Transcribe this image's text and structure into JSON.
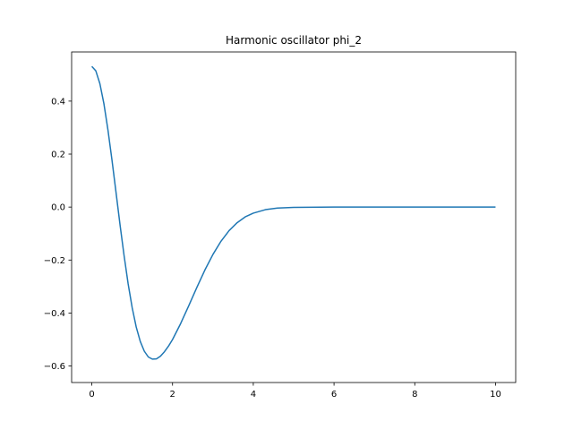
{
  "chart_data": {
    "type": "line",
    "title": "Harmonic oscillator phi_2",
    "xlabel": "",
    "ylabel": "",
    "xlim": [
      -0.5,
      10.5
    ],
    "ylim": [
      -0.6624,
      0.5856
    ],
    "grid": false,
    "legend": "none",
    "x_ticks": [
      {
        "value": 0,
        "label": "0"
      },
      {
        "value": 2,
        "label": "2"
      },
      {
        "value": 4,
        "label": "4"
      },
      {
        "value": 6,
        "label": "6"
      },
      {
        "value": 8,
        "label": "8"
      },
      {
        "value": 10,
        "label": "10"
      }
    ],
    "y_ticks": [
      {
        "value": -0.6,
        "label": "−0.6"
      },
      {
        "value": -0.4,
        "label": "−0.4"
      },
      {
        "value": -0.2,
        "label": "−0.2"
      },
      {
        "value": 0.0,
        "label": "0.0"
      },
      {
        "value": 0.2,
        "label": "0.2"
      },
      {
        "value": 0.4,
        "label": "0.4"
      }
    ],
    "series": [
      {
        "color": "#1f77b4",
        "x": [
          0,
          0.1,
          0.2,
          0.3,
          0.4,
          0.5,
          0.6,
          0.7,
          0.8,
          0.9,
          1.0,
          1.1,
          1.2,
          1.3,
          1.4,
          1.5,
          1.6,
          1.7,
          1.8,
          1.9,
          2.0,
          2.2,
          2.4,
          2.6,
          2.8,
          3.0,
          3.2,
          3.4,
          3.6,
          3.8,
          4.0,
          4.3,
          4.6,
          5.0,
          6.0,
          7.0,
          8.0,
          9.0,
          10.0
        ],
        "y": [
          0.531,
          0.514,
          0.466,
          0.39,
          0.291,
          0.177,
          0.055,
          -0.068,
          -0.184,
          -0.29,
          -0.38,
          -0.453,
          -0.507,
          -0.544,
          -0.566,
          -0.574,
          -0.573,
          -0.563,
          -0.546,
          -0.525,
          -0.5,
          -0.44,
          -0.373,
          -0.304,
          -0.238,
          -0.179,
          -0.129,
          -0.089,
          -0.059,
          -0.037,
          -0.023,
          -0.0098,
          -0.0038,
          -0.001,
          0.0,
          0.0,
          0.0,
          0.0,
          0.0
        ]
      }
    ]
  }
}
